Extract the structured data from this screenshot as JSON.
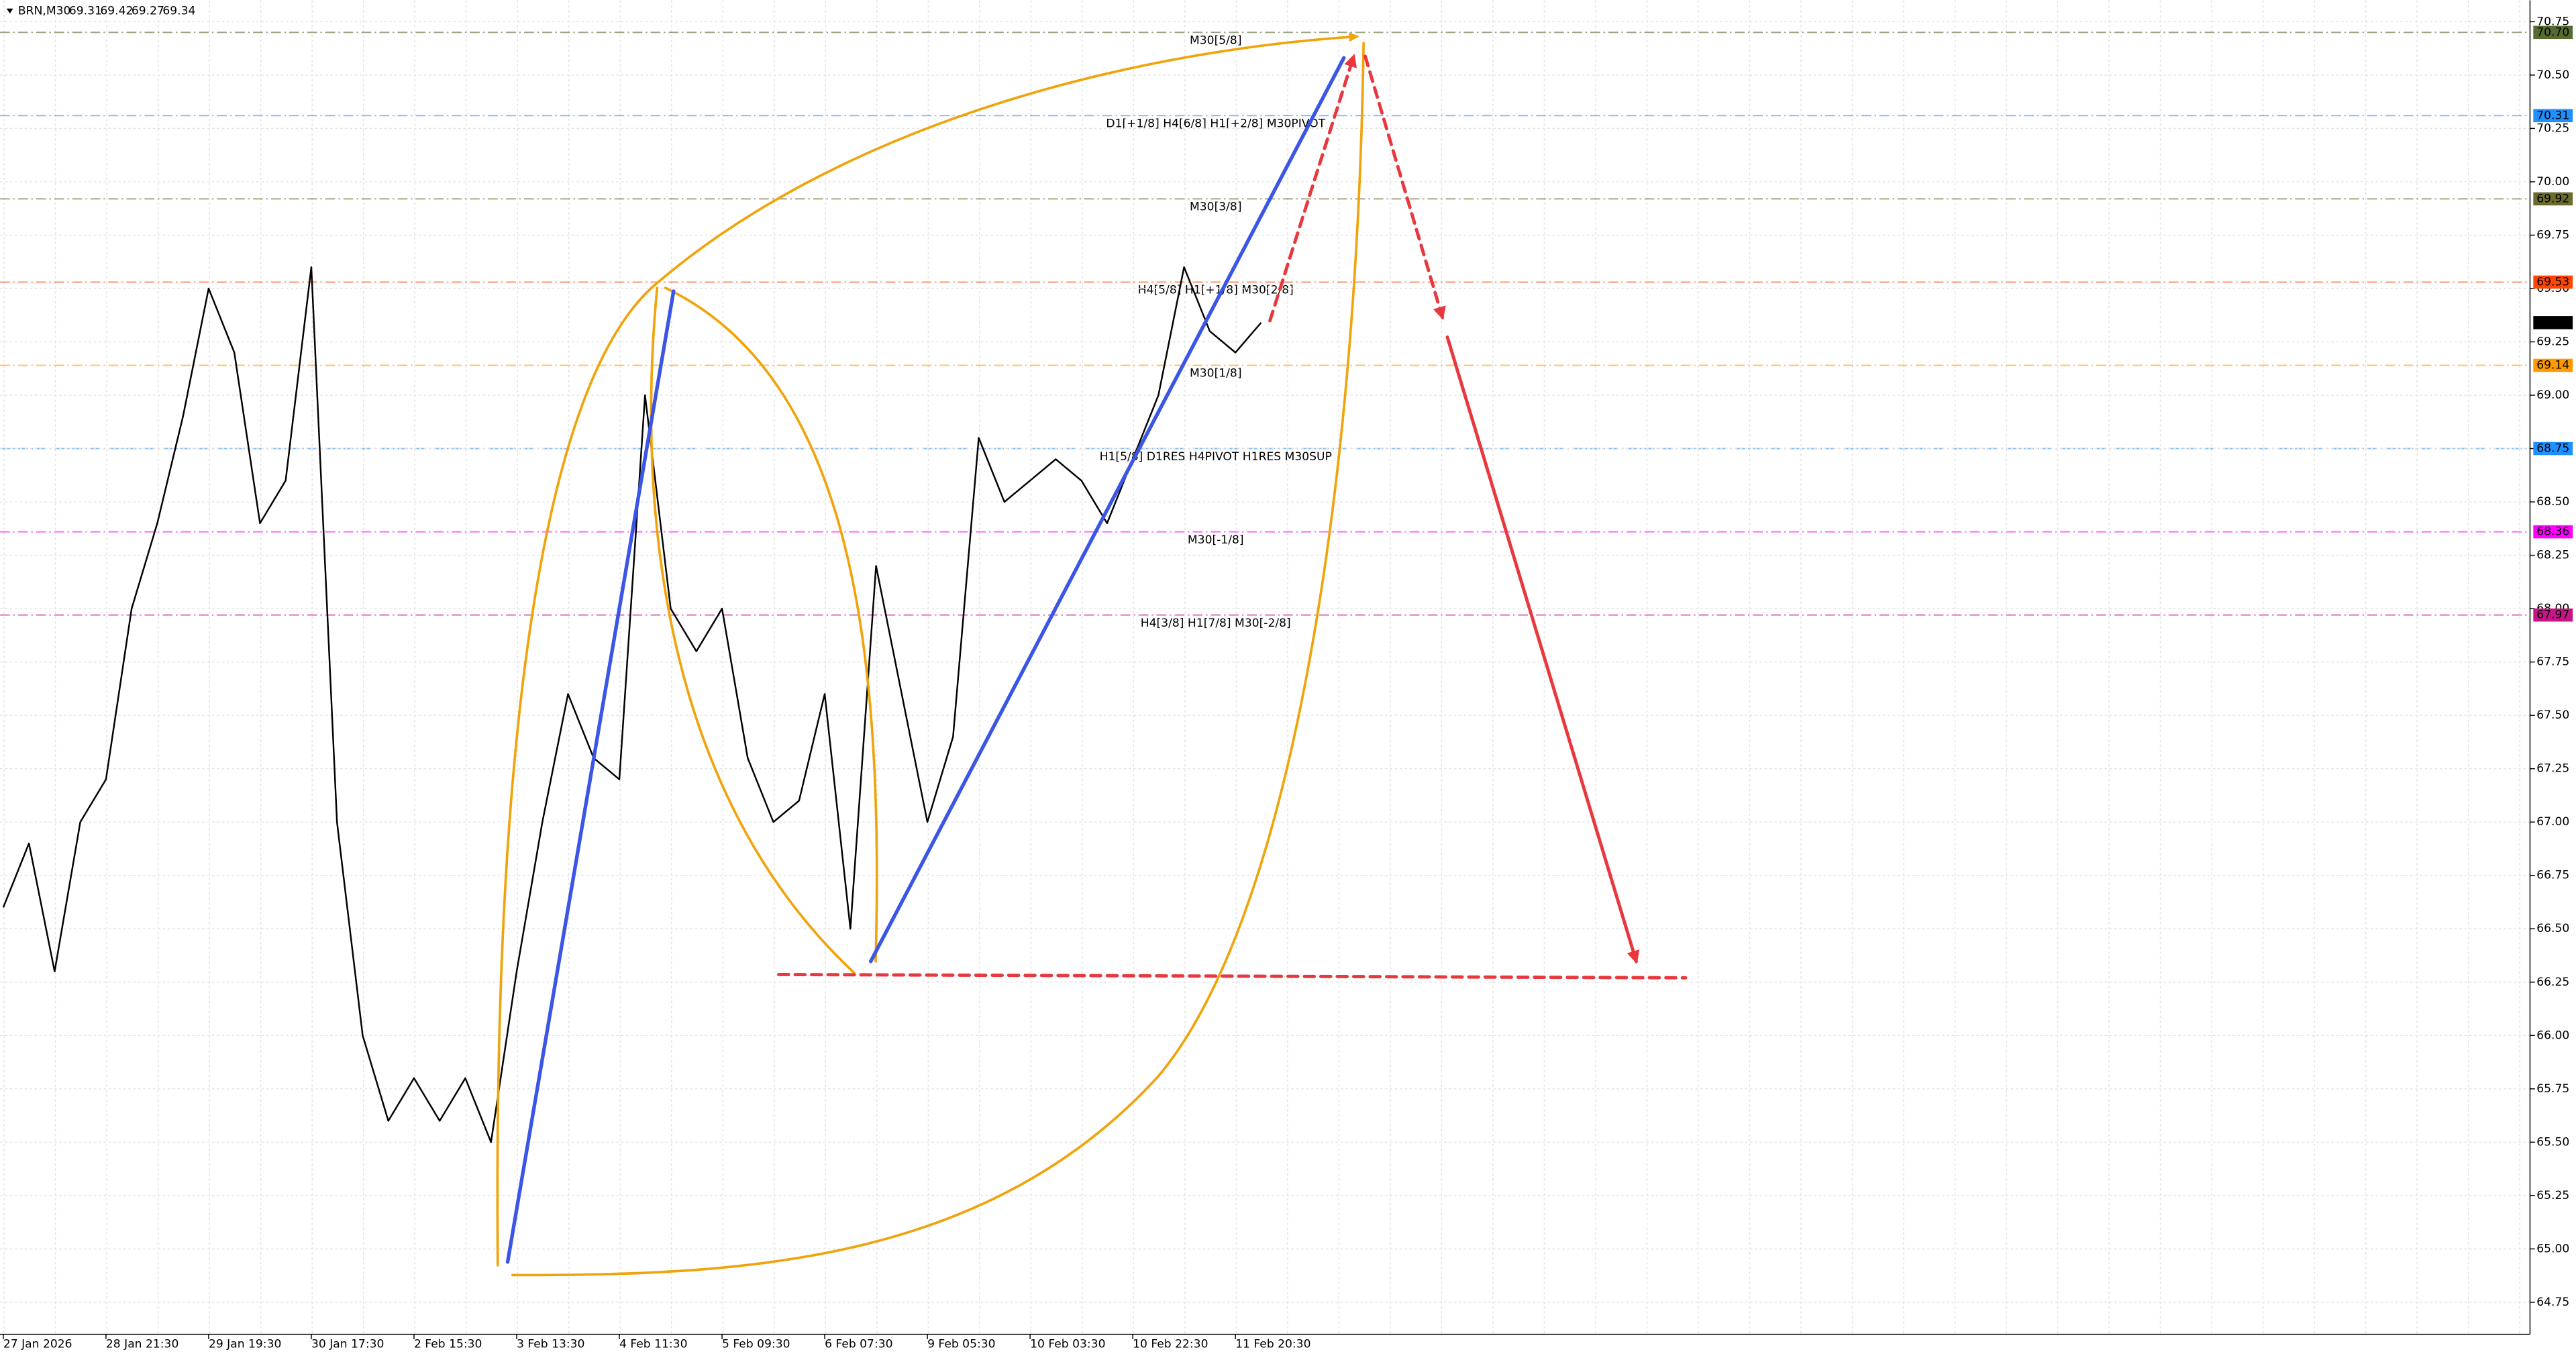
{
  "chart_data": {
    "type": "line",
    "title": "BRN,M30",
    "ohlc": [
      69.31,
      69.42,
      69.27,
      69.34
    ],
    "categories": [
      "27 Jan 2026",
      null,
      null,
      null,
      "28 Jan 21:30",
      null,
      null,
      null,
      "29 Jan 19:30",
      null,
      null,
      null,
      "30 Jan 17:30",
      null,
      null,
      null,
      "2 Feb 15:30",
      null,
      null,
      null,
      "3 Feb 13:30",
      null,
      null,
      null,
      "4 Feb 11:30",
      null,
      null,
      null,
      "5 Feb 09:30",
      null,
      null,
      null,
      "6 Feb 07:30",
      null,
      null,
      null,
      "9 Feb 05:30",
      null,
      null,
      null,
      "10 Feb 03:30",
      null,
      null,
      null,
      "10 Feb 22:30",
      null,
      null,
      null,
      "11 Feb 20:30",
      null
    ],
    "series": [
      {
        "name": "BRN",
        "color": "#000000",
        "values": [
          66.6,
          66.9,
          66.3,
          67.0,
          67.2,
          68.0,
          68.4,
          68.9,
          69.5,
          69.2,
          68.4,
          68.6,
          69.6,
          67.0,
          66.0,
          65.6,
          65.8,
          65.6,
          65.8,
          65.5,
          66.3,
          67.0,
          67.6,
          67.3,
          67.2,
          69.0,
          68.0,
          67.8,
          68.0,
          67.3,
          67.0,
          67.1,
          67.6,
          66.5,
          68.2,
          67.6,
          67.0,
          67.4,
          68.8,
          68.5,
          68.6,
          68.7,
          68.6,
          68.4,
          68.7,
          69.0,
          69.6,
          69.3,
          69.2,
          69.34
        ]
      }
    ],
    "ylim": [
      64.6,
      70.85
    ],
    "yticks": [
      70.75,
      {
        "value": 70.5,
        "label": "70.50"
      },
      70.25,
      {
        "value": 70,
        "label": "70.00"
      },
      69.75,
      {
        "value": 69.5,
        "label": "69.50"
      },
      69.25,
      {
        "value": 69,
        "label": "69.00"
      },
      68.75,
      {
        "value": 68.5,
        "label": "68.50"
      },
      68.25,
      {
        "value": 68,
        "label": "68.00"
      },
      67.75,
      {
        "value": 67.5,
        "label": "67.50"
      },
      67.25,
      {
        "value": 67,
        "label": "67.00"
      },
      66.75,
      {
        "value": 66.5,
        "label": "66.50"
      },
      66.25,
      {
        "value": 66,
        "label": "66.00"
      },
      65.75,
      {
        "value": 65.5,
        "label": "65.50"
      },
      65.25,
      {
        "value": 65,
        "label": "65.00"
      },
      64.75
    ],
    "grid": true,
    "levels": [
      {
        "value": 70.7,
        "value_label": "70.70",
        "name": "M30[5/8]",
        "color": "#556b2f"
      },
      {
        "value": 70.31,
        "value_label": "70.31",
        "name": "D1[+1/8] H4[6/8] H1[+2/8] M30PIVOT",
        "color": "#1e90ff"
      },
      {
        "value": 69.92,
        "value_label": "69.92",
        "name": "M30[3/8]",
        "color": "#6b6b2f"
      },
      {
        "value": 69.53,
        "value_label": "69.53",
        "name": "H4[5/8] H1[+1/8] M30[2/8]",
        "color": "#ff4500"
      },
      {
        "value": 69.14,
        "value_label": "69.14",
        "name": "M30[1/8]",
        "color": "#ff9900"
      },
      {
        "value": 68.75,
        "value_label": "68.75",
        "name": "H1[5/8] D1RES H4PIVOT H1RES M30SUP",
        "color": "#1e90ff"
      },
      {
        "value": 68.36,
        "value_label": "68.36",
        "name": "M30[-1/8]",
        "color": "#ff00ff"
      },
      {
        "value": 67.97,
        "value_label": "67.97",
        "name": "H4[3/8] H1[7/8] M30[-2/8]",
        "color": "#c71585"
      }
    ],
    "last_price": 69.34
  }
}
